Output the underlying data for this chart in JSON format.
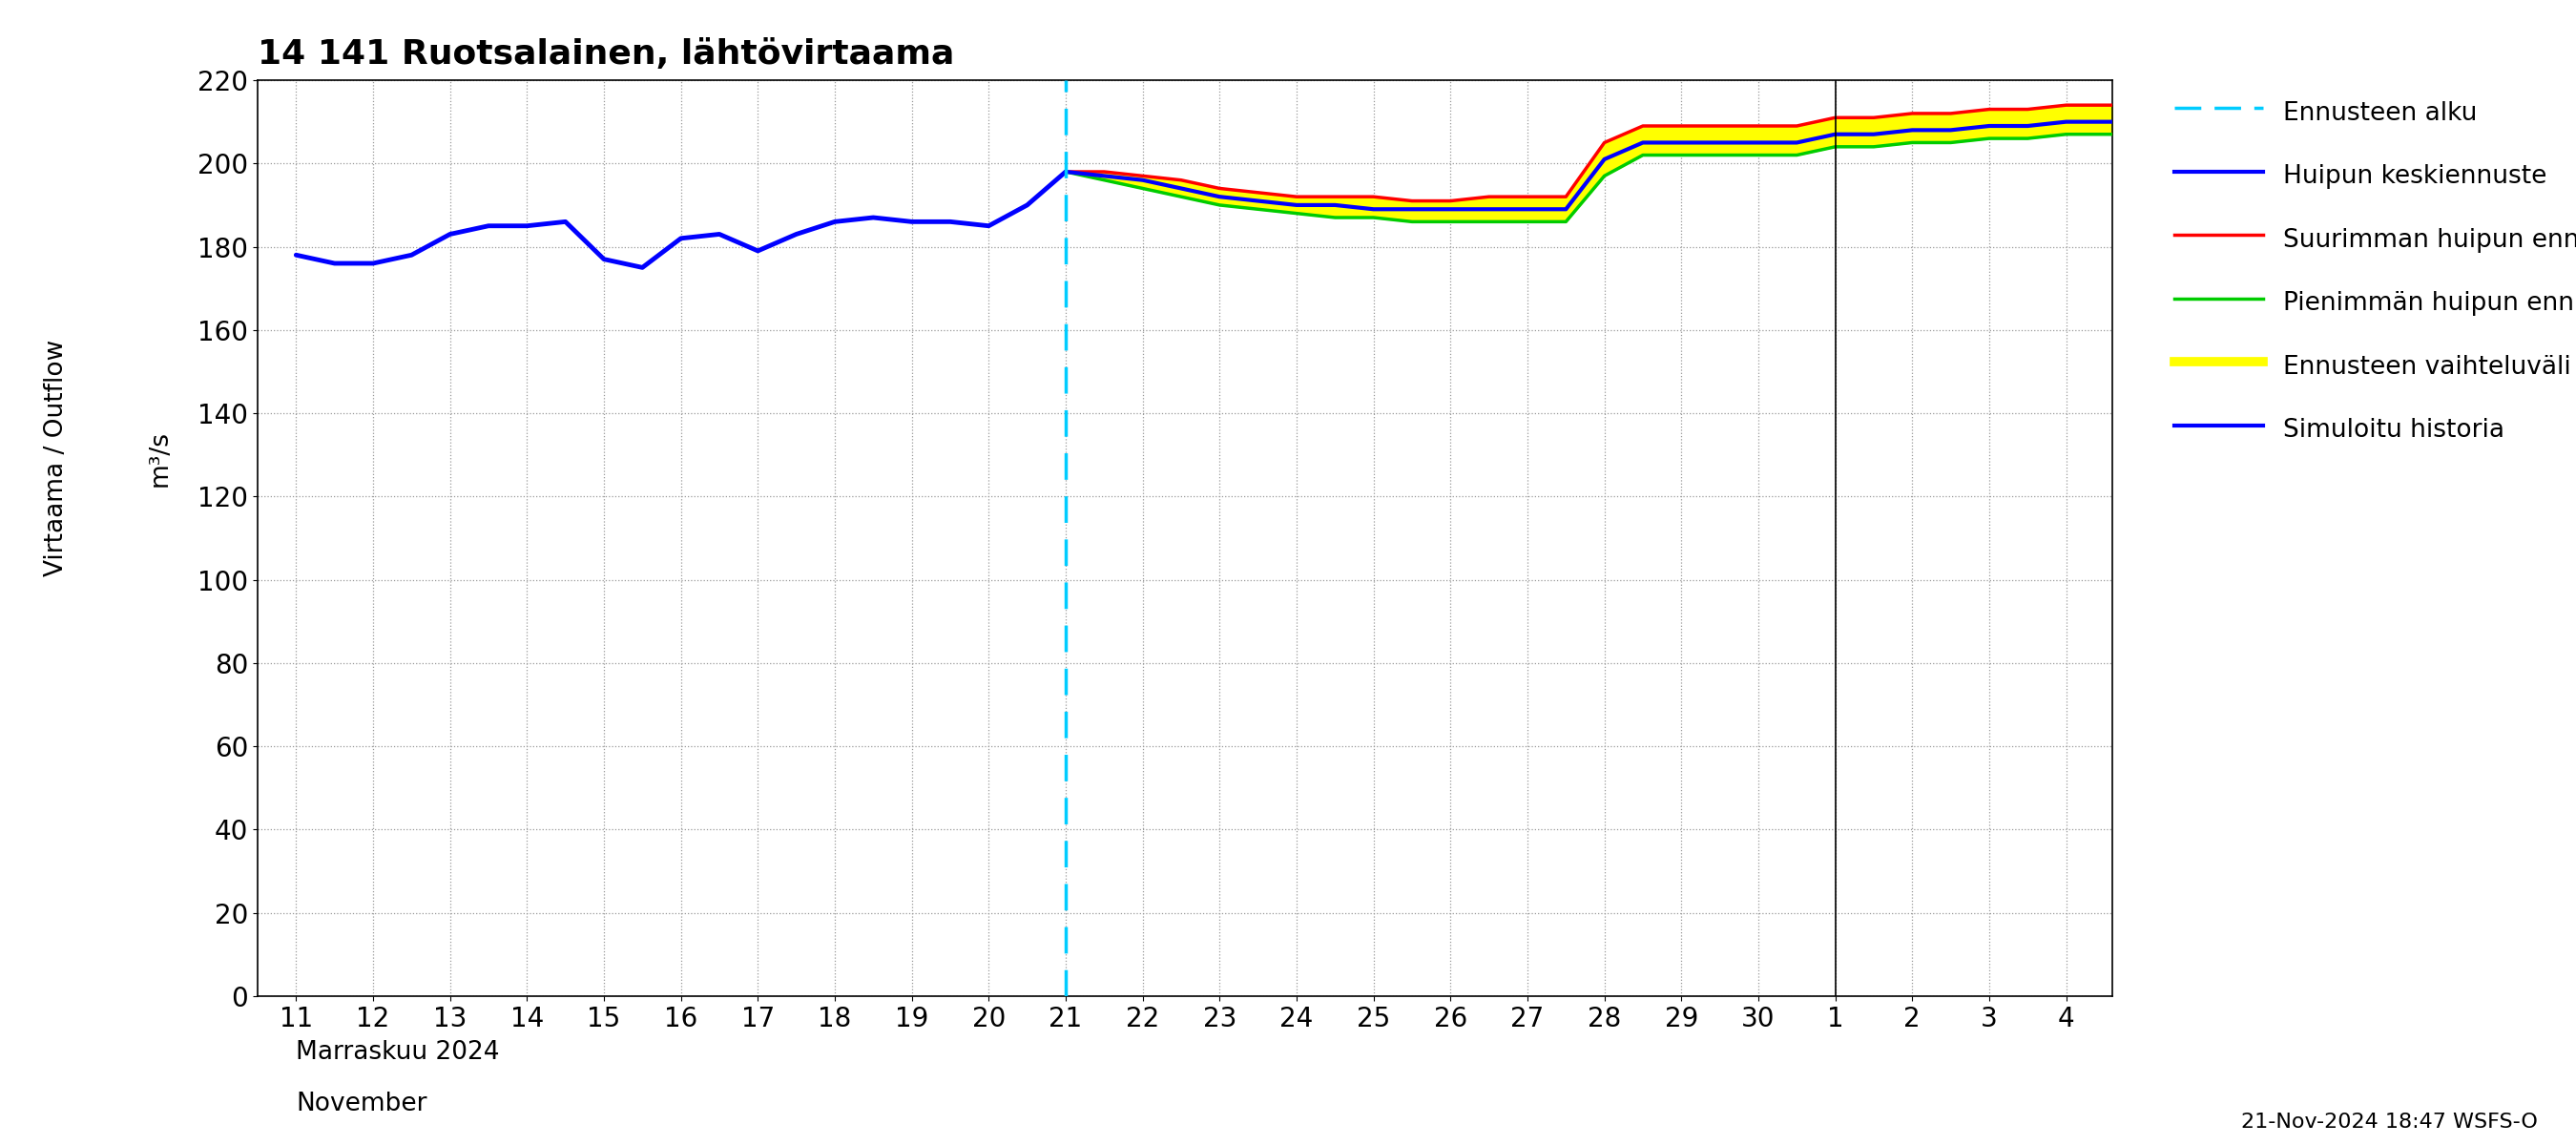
{
  "title": "14 141 Ruotsalainen, lähtövirtaama",
  "ylabel_line1": "Virtaama / Outflow",
  "ylabel_line2": "m³/s",
  "xlabel_line1": "Marraskuu 2024",
  "xlabel_line2": "November",
  "footnote": "21-Nov-2024 18:47 WSFS-O",
  "ylim": [
    0,
    220
  ],
  "yticks": [
    0,
    20,
    40,
    60,
    80,
    100,
    120,
    140,
    160,
    180,
    200,
    220
  ],
  "bg_color": "#ffffff",
  "grid_color": "#999999",
  "x_ticks_nov": [
    11,
    12,
    13,
    14,
    15,
    16,
    17,
    18,
    19,
    20,
    21,
    22,
    23,
    24,
    25,
    26,
    27,
    28,
    29,
    30
  ],
  "x_ticks_dec": [
    1,
    2,
    3,
    4
  ],
  "simuloitu_x": [
    11,
    11.5,
    12,
    12.5,
    13,
    13.5,
    14,
    14.5,
    15,
    15.5,
    16,
    16.5,
    17,
    17.5,
    18,
    18.5,
    19,
    19.5,
    20,
    20.5,
    21
  ],
  "simuloitu_y": [
    178,
    176,
    176,
    178,
    183,
    185,
    185,
    186,
    177,
    175,
    182,
    183,
    179,
    183,
    186,
    187,
    186,
    186,
    185,
    190,
    198
  ],
  "keskiennuste_x": [
    21,
    21.5,
    22,
    22.5,
    23,
    23.5,
    24,
    24.5,
    25,
    25.5,
    26,
    26.5,
    27,
    27.5,
    28,
    28.5,
    29,
    29.5,
    30,
    30.5,
    31,
    31.5,
    32,
    32.5,
    33,
    33.5,
    34,
    34.5,
    35
  ],
  "keskiennuste_y": [
    198,
    197,
    196,
    194,
    192,
    191,
    190,
    190,
    189,
    189,
    189,
    189,
    189,
    189,
    201,
    205,
    205,
    205,
    205,
    205,
    207,
    207,
    208,
    208,
    209,
    209,
    210,
    210,
    210
  ],
  "max_huippu_x": [
    21,
    21.5,
    22,
    22.5,
    23,
    23.5,
    24,
    24.5,
    25,
    25.5,
    26,
    26.5,
    27,
    27.5,
    28,
    28.5,
    29,
    29.5,
    30,
    30.5,
    31,
    31.5,
    32,
    32.5,
    33,
    33.5,
    34,
    34.5,
    35
  ],
  "max_huippu_y": [
    198,
    198,
    197,
    196,
    194,
    193,
    192,
    192,
    192,
    191,
    191,
    192,
    192,
    192,
    205,
    209,
    209,
    209,
    209,
    209,
    211,
    211,
    212,
    212,
    213,
    213,
    214,
    214,
    214
  ],
  "min_huippu_x": [
    21,
    21.5,
    22,
    22.5,
    23,
    23.5,
    24,
    24.5,
    25,
    25.5,
    26,
    26.5,
    27,
    27.5,
    28,
    28.5,
    29,
    29.5,
    30,
    30.5,
    31,
    31.5,
    32,
    32.5,
    33,
    33.5,
    34,
    34.5,
    35
  ],
  "min_huippu_y": [
    198,
    196,
    194,
    192,
    190,
    189,
    188,
    187,
    187,
    186,
    186,
    186,
    186,
    186,
    197,
    202,
    202,
    202,
    202,
    202,
    204,
    204,
    205,
    205,
    206,
    206,
    207,
    207,
    207
  ],
  "vaihteluvali_x": [
    21,
    21.5,
    22,
    22.5,
    23,
    23.5,
    24,
    24.5,
    25,
    25.5,
    26,
    26.5,
    27,
    27.5,
    28,
    28.5,
    29,
    29.5,
    30,
    30.5,
    31,
    31.5,
    32,
    32.5,
    33,
    33.5,
    34,
    34.5,
    35
  ],
  "vaihteluvali_upper": [
    198,
    198,
    197,
    196,
    194,
    193,
    192,
    192,
    192,
    191,
    191,
    192,
    192,
    192,
    205,
    209,
    209,
    209,
    209,
    209,
    211,
    211,
    212,
    212,
    213,
    213,
    214,
    214,
    214
  ],
  "vaihteluvali_lower": [
    198,
    196,
    194,
    192,
    190,
    189,
    188,
    187,
    187,
    186,
    186,
    186,
    186,
    186,
    197,
    202,
    202,
    202,
    202,
    202,
    204,
    204,
    205,
    205,
    206,
    206,
    207,
    207,
    207
  ]
}
